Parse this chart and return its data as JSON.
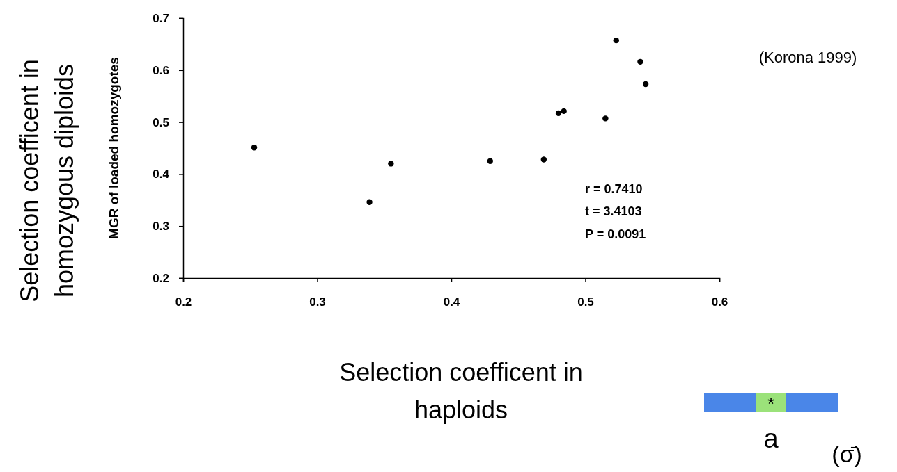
{
  "chart_data": {
    "type": "scatter",
    "xlabel": "Selection coefficent in haploids",
    "ylabel": "MGR of loaded homozygotes",
    "x": [
      0.253,
      0.339,
      0.355,
      0.429,
      0.469,
      0.48,
      0.484,
      0.515,
      0.523,
      0.541,
      0.545
    ],
    "series": [
      {
        "color": "#000000",
        "values": [
          0.451,
          0.346,
          0.42,
          0.425,
          0.428,
          0.517,
          0.521,
          0.507,
          0.657,
          0.616,
          0.573
        ]
      }
    ],
    "xlim": [
      0.2,
      0.6
    ],
    "xticks": [
      0.2,
      0.3,
      0.4,
      0.5,
      0.6
    ],
    "ylim": [
      0.2,
      0.7
    ],
    "yticks": [
      0.2,
      0.3,
      0.4,
      0.5,
      0.6,
      0.7
    ],
    "grid": false,
    "marker": "circle",
    "annotations": [
      "Selection coefficent in homozygous diploids",
      "(Korona 1999)",
      "r = 0.7410",
      "t = 3.4103",
      "P = 0.0091",
      "*",
      "a",
      "(σ̄)"
    ]
  }
}
